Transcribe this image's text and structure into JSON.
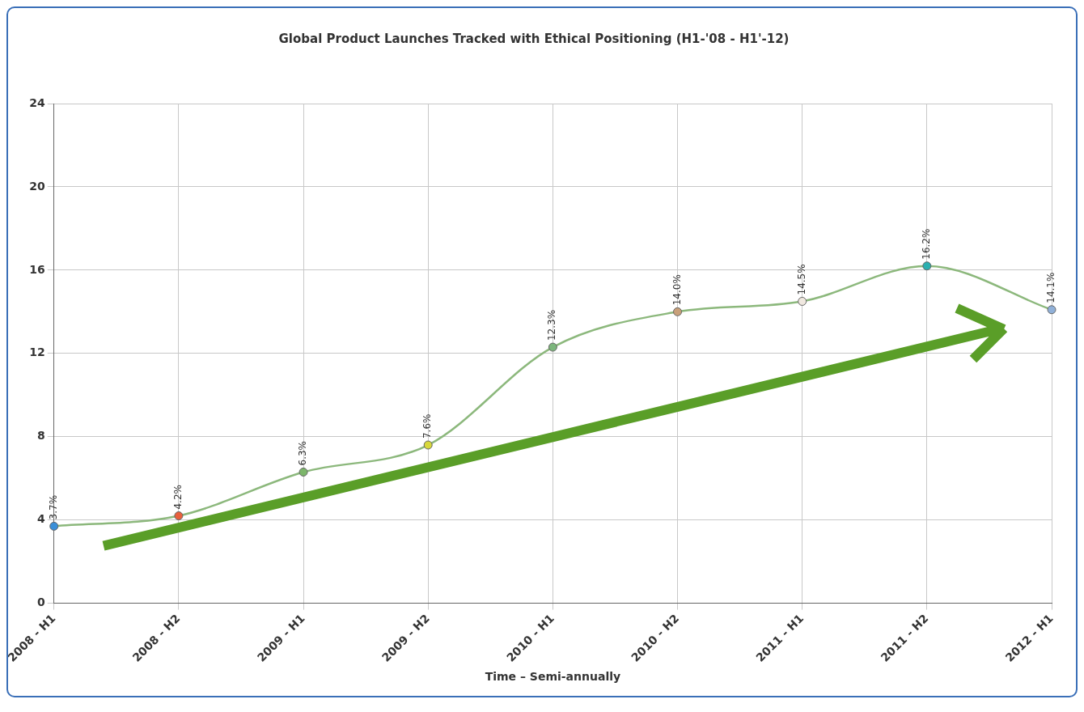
{
  "chart_data": {
    "type": "line",
    "title": "Global Product Launches Tracked with Ethical Positioning (H1-'08 - H1'-12)",
    "xlabel": "Time – Semi-annually",
    "categories": [
      "2008 - H1",
      "2008 - H2",
      "2009 - H1",
      "2009 - H2",
      "2010 - H1",
      "2010 - H2",
      "2011 - H1",
      "2011 - H2",
      "2012 - H1"
    ],
    "values": [
      3.7,
      4.2,
      6.3,
      7.6,
      12.3,
      14.0,
      14.5,
      16.2,
      14.1
    ],
    "color": "#8cb87c",
    "colors": [
      "#3a8fd8",
      "#e8603c",
      "#7cb66a",
      "#d8d83a",
      "#7cb67c",
      "#c8a07a",
      "#f0e8e0",
      "#2ab0b0",
      "#90b0d8"
    ],
    "value_labels": [
      "3.7%",
      "4.2%",
      "6.3%",
      "7.6%",
      "12.3%",
      "14.0%",
      "14.5%",
      "16.2%",
      "14.1%"
    ],
    "ylim": [
      0,
      24
    ],
    "yticks": [
      0,
      4,
      8,
      12,
      16,
      20,
      24
    ],
    "grid": true,
    "legend": false,
    "marker": "circle"
  }
}
